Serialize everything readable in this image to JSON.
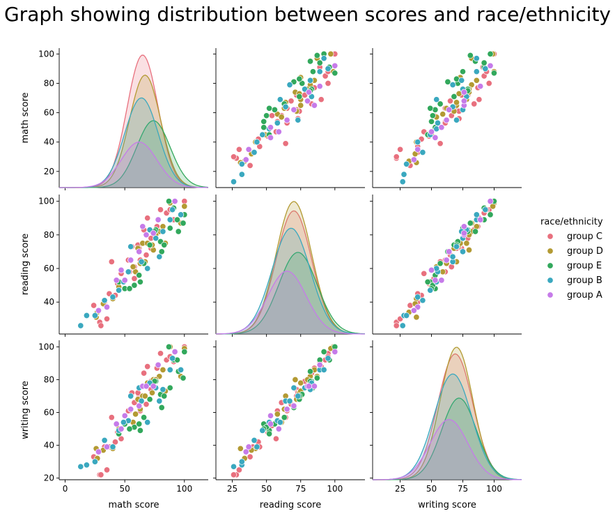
{
  "chart_data": {
    "type": "scatter",
    "subtype": "pairplot",
    "title": "Graph showing distribution between scores and race/ethnicity",
    "variables": [
      "math score",
      "reading score",
      "writing score"
    ],
    "diagonal": "kde",
    "off_diagonal": "scatter",
    "grid": false,
    "hue": {
      "title": "race/ethnicity",
      "legend_position": "right",
      "groups": [
        {
          "name": "group C",
          "color": "#e8707e"
        },
        {
          "name": "group D",
          "color": "#b39a33"
        },
        {
          "name": "group E",
          "color": "#32a85c"
        },
        {
          "name": "group B",
          "color": "#3aa8bf"
        },
        {
          "name": "group A",
          "color": "#c67be9"
        }
      ]
    },
    "axes": {
      "math score": {
        "lim": [
          -5,
          120
        ],
        "ticks": [
          0,
          50,
          100
        ],
        "row_lim": [
          9,
          104
        ],
        "row_ticks": [
          20,
          40,
          60,
          80,
          100
        ]
      },
      "reading score": {
        "lim": [
          13,
          122
        ],
        "ticks": [
          25,
          50,
          75,
          100
        ],
        "row_lim": [
          21,
          104
        ],
        "row_ticks": [
          40,
          60,
          80,
          100
        ]
      },
      "writing score": {
        "lim": [
          3,
          122
        ],
        "ticks": [
          25,
          50,
          75,
          100
        ],
        "row_lim": [
          19,
          104
        ],
        "row_ticks": [
          20,
          40,
          60,
          80,
          100
        ]
      }
    },
    "kde_peaks": {
      "math score": [
        {
          "group": "group C",
          "mean": 65,
          "sd": 13,
          "peak": 0.99
        },
        {
          "group": "group D",
          "mean": 67,
          "sd": 13,
          "peak": 0.84
        },
        {
          "group": "group E",
          "mean": 74,
          "sd": 14,
          "peak": 0.5
        },
        {
          "group": "group B",
          "mean": 64,
          "sd": 14,
          "peak": 0.67
        },
        {
          "group": "group A",
          "mean": 62,
          "sd": 15,
          "peak": 0.34
        }
      ],
      "reading score": [
        {
          "group": "group C",
          "mean": 70,
          "sd": 13,
          "peak": 0.92
        },
        {
          "group": "group D",
          "mean": 70,
          "sd": 13,
          "peak": 0.99
        },
        {
          "group": "group E",
          "mean": 73,
          "sd": 14,
          "peak": 0.61
        },
        {
          "group": "group B",
          "mean": 68,
          "sd": 14,
          "peak": 0.79
        },
        {
          "group": "group A",
          "mean": 65,
          "sd": 14,
          "peak": 0.47
        }
      ],
      "writing score": [
        {
          "group": "group C",
          "mean": 69,
          "sd": 14,
          "peak": 0.94
        },
        {
          "group": "group D",
          "mean": 70,
          "sd": 13,
          "peak": 0.99
        },
        {
          "group": "group E",
          "mean": 72,
          "sd": 14,
          "peak": 0.61
        },
        {
          "group": "group B",
          "mean": 67,
          "sd": 15,
          "peak": 0.79
        },
        {
          "group": "group A",
          "mean": 64,
          "sd": 15,
          "peak": 0.45
        }
      ]
    },
    "points": [
      {
        "group": "group C",
        "math": 72,
        "reading": 72,
        "writing": 74
      },
      {
        "group": "group C",
        "math": 69,
        "reading": 90,
        "writing": 88
      },
      {
        "group": "group C",
        "math": 47,
        "reading": 57,
        "writing": 44
      },
      {
        "group": "group C",
        "math": 58,
        "reading": 54,
        "writing": 52
      },
      {
        "group": "group C",
        "math": 33,
        "reading": 40,
        "writing": 39
      },
      {
        "group": "group C",
        "math": 29,
        "reading": 28,
        "writing": 22
      },
      {
        "group": "group C",
        "math": 35,
        "reading": 30,
        "writing": 25
      },
      {
        "group": "group C",
        "math": 18,
        "reading": 32,
        "writing": 28
      },
      {
        "group": "group C",
        "math": 66,
        "reading": 83,
        "writing": 84
      },
      {
        "group": "group C",
        "math": 80,
        "reading": 95,
        "writing": 96
      },
      {
        "group": "group C",
        "math": 100,
        "reading": 100,
        "writing": 100
      },
      {
        "group": "group C",
        "math": 42,
        "reading": 44,
        "writing": 42
      },
      {
        "group": "group C",
        "math": 30,
        "reading": 26,
        "writing": 22
      },
      {
        "group": "group C",
        "math": 58,
        "reading": 61,
        "writing": 66
      },
      {
        "group": "group C",
        "math": 54,
        "reading": 58,
        "writing": 61
      },
      {
        "group": "group C",
        "math": 77,
        "reading": 85,
        "writing": 87
      },
      {
        "group": "group C",
        "math": 63,
        "reading": 65,
        "writing": 61
      },
      {
        "group": "group C",
        "math": 53,
        "reading": 65,
        "writing": 61
      },
      {
        "group": "group C",
        "math": 85,
        "reading": 93,
        "writing": 92
      },
      {
        "group": "group C",
        "math": 62,
        "reading": 72,
        "writing": 70
      },
      {
        "group": "group C",
        "math": 72,
        "reading": 78,
        "writing": 79
      },
      {
        "group": "group C",
        "math": 44,
        "reading": 51,
        "writing": 48
      },
      {
        "group": "group C",
        "math": 37,
        "reading": 45,
        "writing": 39
      },
      {
        "group": "group C",
        "math": 56,
        "reading": 73,
        "writing": 72
      },
      {
        "group": "group C",
        "math": 88,
        "reading": 95,
        "writing": 94
      },
      {
        "group": "group C",
        "math": 24,
        "reading": 38,
        "writing": 33
      },
      {
        "group": "group C",
        "math": 91,
        "reading": 89,
        "writing": 91
      },
      {
        "group": "group C",
        "math": 68,
        "reading": 68,
        "writing": 65
      },
      {
        "group": "group C",
        "math": 39,
        "reading": 64,
        "writing": 57
      },
      {
        "group": "group C",
        "math": 61,
        "reading": 74,
        "writing": 72
      },
      {
        "group": "group D",
        "math": 65,
        "reading": 75,
        "writing": 70
      },
      {
        "group": "group D",
        "math": 74,
        "reading": 71,
        "writing": 80
      },
      {
        "group": "group D",
        "math": 71,
        "reading": 83,
        "writing": 78
      },
      {
        "group": "group D",
        "math": 40,
        "reading": 42,
        "writing": 38
      },
      {
        "group": "group D",
        "math": 50,
        "reading": 53,
        "writing": 58
      },
      {
        "group": "group D",
        "math": 82,
        "reading": 85,
        "writing": 86
      },
      {
        "group": "group D",
        "math": 73,
        "reading": 74,
        "writing": 72
      },
      {
        "group": "group D",
        "math": 97,
        "reading": 87,
        "writing": 82
      },
      {
        "group": "group D",
        "math": 69,
        "reading": 75,
        "writing": 78
      },
      {
        "group": "group D",
        "math": 27,
        "reading": 34,
        "writing": 32
      },
      {
        "group": "group D",
        "math": 59,
        "reading": 58,
        "writing": 59
      },
      {
        "group": "group D",
        "math": 79,
        "reading": 82,
        "writing": 82
      },
      {
        "group": "group D",
        "math": 88,
        "reading": 99,
        "writing": 100
      },
      {
        "group": "group D",
        "math": 63,
        "reading": 63,
        "writing": 62
      },
      {
        "group": "group D",
        "math": 45,
        "reading": 49,
        "writing": 50
      },
      {
        "group": "group D",
        "math": 55,
        "reading": 65,
        "writing": 62
      },
      {
        "group": "group D",
        "math": 92,
        "reading": 100,
        "writing": 97
      },
      {
        "group": "group D",
        "math": 67,
        "reading": 64,
        "writing": 70
      },
      {
        "group": "group D",
        "math": 26,
        "reading": 31,
        "writing": 38
      },
      {
        "group": "group D",
        "math": 84,
        "reading": 75,
        "writing": 73
      },
      {
        "group": "group D",
        "math": 57,
        "reading": 61,
        "writing": 54
      },
      {
        "group": "group D",
        "math": 76,
        "reading": 80,
        "writing": 80
      },
      {
        "group": "group D",
        "math": 61,
        "reading": 72,
        "writing": 68
      },
      {
        "group": "group D",
        "math": 32,
        "reading": 39,
        "writing": 37
      },
      {
        "group": "group D",
        "math": 100,
        "reading": 97,
        "writing": 99
      },
      {
        "group": "group E",
        "math": 76,
        "reading": 83,
        "writing": 79
      },
      {
        "group": "group E",
        "math": 88,
        "reading": 84,
        "writing": 75
      },
      {
        "group": "group E",
        "math": 62,
        "reading": 56,
        "writing": 53
      },
      {
        "group": "group E",
        "math": 50,
        "reading": 48,
        "writing": 53
      },
      {
        "group": "group E",
        "math": 71,
        "reading": 74,
        "writing": 68
      },
      {
        "group": "group E",
        "math": 99,
        "reading": 87,
        "writing": 81
      },
      {
        "group": "group E",
        "math": 91,
        "reading": 96,
        "writing": 92
      },
      {
        "group": "group E",
        "math": 80,
        "reading": 76,
        "writing": 71
      },
      {
        "group": "group E",
        "math": 63,
        "reading": 52,
        "writing": 49
      },
      {
        "group": "group E",
        "math": 94,
        "reading": 89,
        "writing": 92
      },
      {
        "group": "group E",
        "math": 100,
        "reading": 92,
        "writing": 97
      },
      {
        "group": "group E",
        "math": 83,
        "reading": 74,
        "writing": 70
      },
      {
        "group": "group E",
        "math": 66,
        "reading": 63,
        "writing": 57
      },
      {
        "group": "group E",
        "math": 75,
        "reading": 82,
        "writing": 79
      },
      {
        "group": "group E",
        "math": 58,
        "reading": 50,
        "writing": 51
      },
      {
        "group": "group E",
        "math": 87,
        "reading": 100,
        "writing": 100
      },
      {
        "group": "group E",
        "math": 81,
        "reading": 70,
        "writing": 63
      },
      {
        "group": "group E",
        "math": 95,
        "reading": 82,
        "writing": 85
      },
      {
        "group": "group E",
        "math": 54,
        "reading": 48,
        "writing": 50
      },
      {
        "group": "group E",
        "math": 45,
        "reading": 52,
        "writing": 47
      },
      {
        "group": "group B",
        "math": 90,
        "reading": 95,
        "writing": 93
      },
      {
        "group": "group B",
        "math": 76,
        "reading": 78,
        "writing": 75
      },
      {
        "group": "group B",
        "math": 40,
        "reading": 43,
        "writing": 39
      },
      {
        "group": "group B",
        "math": 64,
        "reading": 64,
        "writing": 67
      },
      {
        "group": "group B",
        "math": 18,
        "reading": 32,
        "writing": 28
      },
      {
        "group": "group B",
        "math": 13,
        "reading": 26,
        "writing": 27
      },
      {
        "group": "group B",
        "math": 25,
        "reading": 32,
        "writing": 30
      },
      {
        "group": "group B",
        "math": 88,
        "reading": 89,
        "writing": 86
      },
      {
        "group": "group B",
        "math": 55,
        "reading": 73,
        "writing": 70
      },
      {
        "group": "group B",
        "math": 53,
        "reading": 58,
        "writing": 55
      },
      {
        "group": "group B",
        "math": 71,
        "reading": 83,
        "writing": 78
      },
      {
        "group": "group B",
        "math": 45,
        "reading": 47,
        "writing": 49
      },
      {
        "group": "group B",
        "math": 62,
        "reading": 70,
        "writing": 75
      },
      {
        "group": "group B",
        "math": 97,
        "reading": 92,
        "writing": 86
      },
      {
        "group": "group B",
        "math": 69,
        "reading": 60,
        "writing": 54
      },
      {
        "group": "group B",
        "math": 33,
        "reading": 41,
        "writing": 43
      },
      {
        "group": "group B",
        "math": 82,
        "reading": 82,
        "writing": 74
      },
      {
        "group": "group B",
        "math": 49,
        "reading": 52,
        "writing": 54
      },
      {
        "group": "group B",
        "math": 79,
        "reading": 67,
        "writing": 67
      },
      {
        "group": "group A",
        "math": 50,
        "reading": 53,
        "writing": 58
      },
      {
        "group": "group A",
        "math": 92,
        "reading": 100,
        "writing": 97
      },
      {
        "group": "group A",
        "math": 43,
        "reading": 53,
        "writing": 53
      },
      {
        "group": "group A",
        "math": 65,
        "reading": 85,
        "writing": 76
      },
      {
        "group": "group A",
        "math": 47,
        "reading": 59,
        "writing": 50
      },
      {
        "group": "group A",
        "math": 55,
        "reading": 65,
        "writing": 62
      },
      {
        "group": "group A",
        "math": 68,
        "reading": 80,
        "writing": 76
      },
      {
        "group": "group A",
        "math": 35,
        "reading": 37,
        "writing": 39
      },
      {
        "group": "group A",
        "math": 28,
        "reading": 35,
        "writing": 36
      },
      {
        "group": "group A",
        "math": 74,
        "reading": 81,
        "writing": 76
      },
      {
        "group": "group A",
        "math": 62,
        "reading": 70,
        "writing": 64
      },
      {
        "group": "group A",
        "math": 78,
        "reading": 89,
        "writing": 89
      }
    ]
  }
}
